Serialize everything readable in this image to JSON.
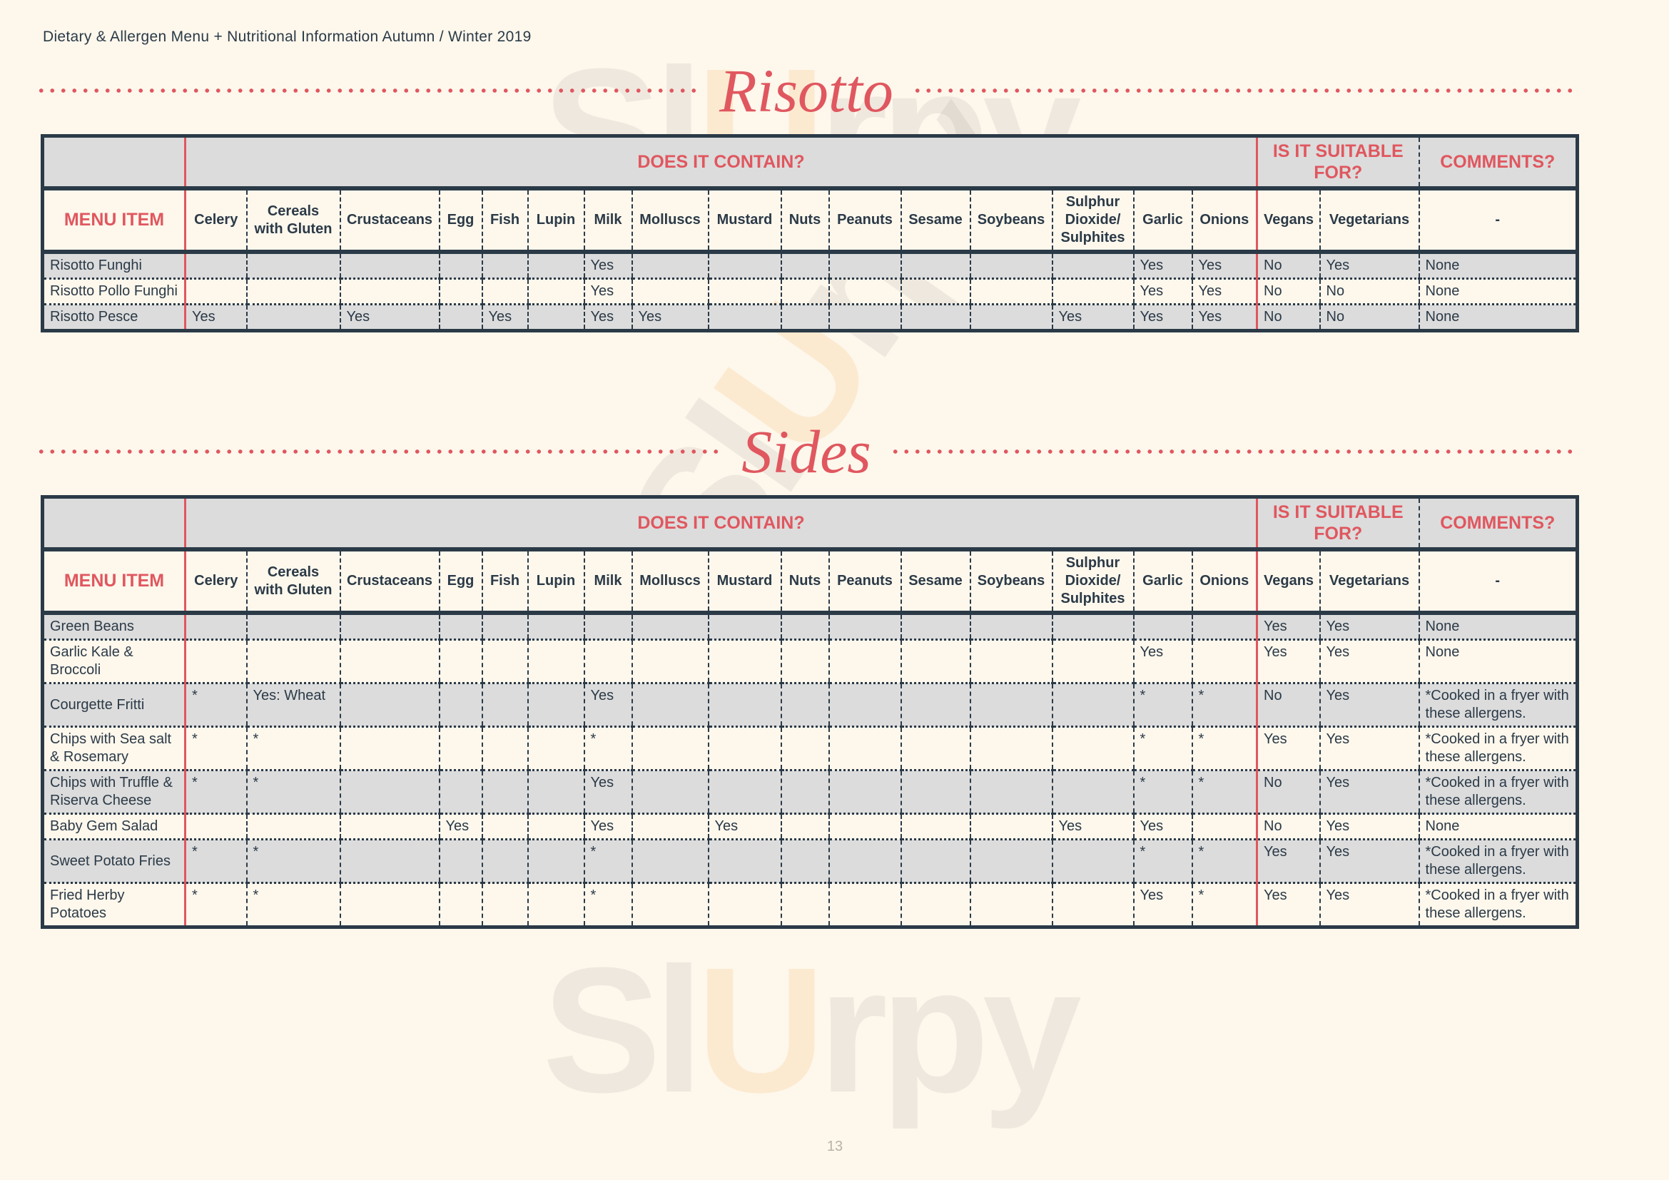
{
  "header": {
    "title": "Dietary & Allergen Menu + Nutritional Information Autumn / Winter 2019"
  },
  "watermark": "Slurpy",
  "colors": {
    "accent": "#e0575f",
    "dark": "#2b3a47",
    "shade": "#dcdcdc",
    "background": "#fdf7ec"
  },
  "columns": {
    "menu_item": "MENU ITEM",
    "group_contains": "DOES IT CONTAIN?",
    "group_suitable": "IS IT SUITABLE FOR?",
    "group_comments": "COMMENTS?",
    "comments_sub": "-",
    "allergens": [
      "Celery",
      "Cereals with Gluten",
      "Crustaceans",
      "Egg",
      "Fish",
      "Lupin",
      "Milk",
      "Molluscs",
      "Mustard",
      "Nuts",
      "Peanuts",
      "Sesame",
      "Soybeans",
      "Sulphur Dioxide/ Sulphites",
      "Garlic",
      "Onions"
    ],
    "suitable": [
      "Vegans",
      "Vegetarians"
    ]
  },
  "risotto": {
    "title": "Risotto",
    "rows": [
      {
        "name": "Risotto Funghi",
        "values": [
          "",
          "",
          "",
          "",
          "",
          "",
          "Yes",
          "",
          "",
          "",
          "",
          "",
          "",
          "",
          "Yes",
          "Yes"
        ],
        "vegans": "No",
        "vegetarians": "Yes",
        "comment": "None"
      },
      {
        "name": "Risotto Pollo Funghi",
        "values": [
          "",
          "",
          "",
          "",
          "",
          "",
          "Yes",
          "",
          "",
          "",
          "",
          "",
          "",
          "",
          "Yes",
          "Yes"
        ],
        "vegans": "No",
        "vegetarians": "No",
        "comment": "None"
      },
      {
        "name": "Risotto Pesce",
        "values": [
          "Yes",
          "",
          "Yes",
          "",
          "Yes",
          "",
          "Yes",
          "Yes",
          "",
          "",
          "",
          "",
          "",
          "Yes",
          "Yes",
          "Yes"
        ],
        "vegans": "No",
        "vegetarians": "No",
        "comment": "None"
      }
    ]
  },
  "sides": {
    "title": "Sides",
    "rows": [
      {
        "name": "Green Beans",
        "values": [
          "",
          "",
          "",
          "",
          "",
          "",
          "",
          "",
          "",
          "",
          "",
          "",
          "",
          "",
          "",
          ""
        ],
        "vegans": "Yes",
        "vegetarians": "Yes",
        "comment": "None"
      },
      {
        "name": "Garlic Kale & Broccoli",
        "values": [
          "",
          "",
          "",
          "",
          "",
          "",
          "",
          "",
          "",
          "",
          "",
          "",
          "",
          "",
          "Yes",
          ""
        ],
        "vegans": "Yes",
        "vegetarians": "Yes",
        "comment": "None"
      },
      {
        "name": "Courgette Fritti",
        "values": [
          "*",
          "Yes: Wheat",
          "",
          "",
          "",
          "",
          "Yes",
          "",
          "",
          "",
          "",
          "",
          "",
          "",
          "*",
          "*"
        ],
        "vegans": "No",
        "vegetarians": "Yes",
        "comment": "*Cooked in a fryer with these allergens."
      },
      {
        "name": "Chips with Sea salt & Rosemary",
        "values": [
          "*",
          "*",
          "",
          "",
          "",
          "",
          "*",
          "",
          "",
          "",
          "",
          "",
          "",
          "",
          "*",
          "*"
        ],
        "vegans": "Yes",
        "vegetarians": "Yes",
        "comment": "*Cooked in a fryer with these allergens."
      },
      {
        "name": "Chips with Truffle & Riserva Cheese",
        "values": [
          "*",
          "*",
          "",
          "",
          "",
          "",
          "Yes",
          "",
          "",
          "",
          "",
          "",
          "",
          "",
          "*",
          "*"
        ],
        "vegans": "No",
        "vegetarians": "Yes",
        "comment": "*Cooked in a fryer with these allergens."
      },
      {
        "name": "Baby Gem Salad",
        "values": [
          "",
          "",
          "",
          "Yes",
          "",
          "",
          "Yes",
          "",
          "Yes",
          "",
          "",
          "",
          "",
          "Yes",
          "Yes",
          ""
        ],
        "vegans": "No",
        "vegetarians": "Yes",
        "comment": "None"
      },
      {
        "name": "Sweet Potato Fries",
        "values": [
          "*",
          "*",
          "",
          "",
          "",
          "",
          "*",
          "",
          "",
          "",
          "",
          "",
          "",
          "",
          "*",
          "*"
        ],
        "vegans": "Yes",
        "vegetarians": "Yes",
        "comment": "*Cooked in a fryer with these allergens."
      },
      {
        "name": "Fried Herby Potatoes",
        "values": [
          "*",
          "*",
          "",
          "",
          "",
          "",
          "*",
          "",
          "",
          "",
          "",
          "",
          "",
          "",
          "Yes",
          "*"
        ],
        "vegans": "Yes",
        "vegetarians": "Yes",
        "comment": "*Cooked in a fryer with these allergens."
      }
    ]
  },
  "footer": {
    "page_number": "13"
  }
}
